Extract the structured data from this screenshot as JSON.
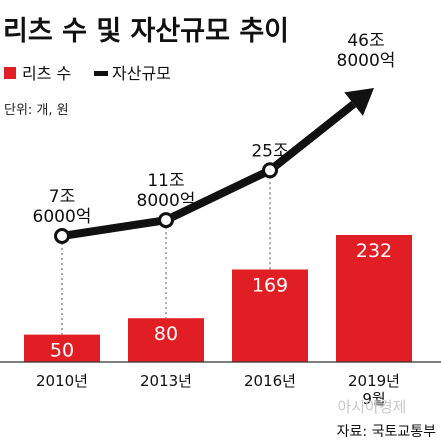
{
  "title": "리츠 수 및 자산규모 추이",
  "unit": "단위: 개, 원",
  "source": "자료: 국토교통부",
  "watermark": "아시아경제",
  "colors": {
    "bar": "#e21e25",
    "line": "#111111",
    "axis": "#333333"
  },
  "chart_data": {
    "type": "bar",
    "categories": [
      "2010년",
      "2013년",
      "2016년",
      "2019년 9월"
    ],
    "series": [
      {
        "name": "리츠 수",
        "values": [
          50,
          80,
          169,
          232
        ],
        "labels": [
          "50",
          "80",
          "169",
          "232"
        ]
      },
      {
        "name": "자산규모",
        "type": "line",
        "values": [
          7.6,
          11.8,
          25,
          46.8
        ],
        "labels": [
          "7조 6000억",
          "11조 8000억",
          "25조",
          "46조 8000억"
        ]
      }
    ]
  }
}
